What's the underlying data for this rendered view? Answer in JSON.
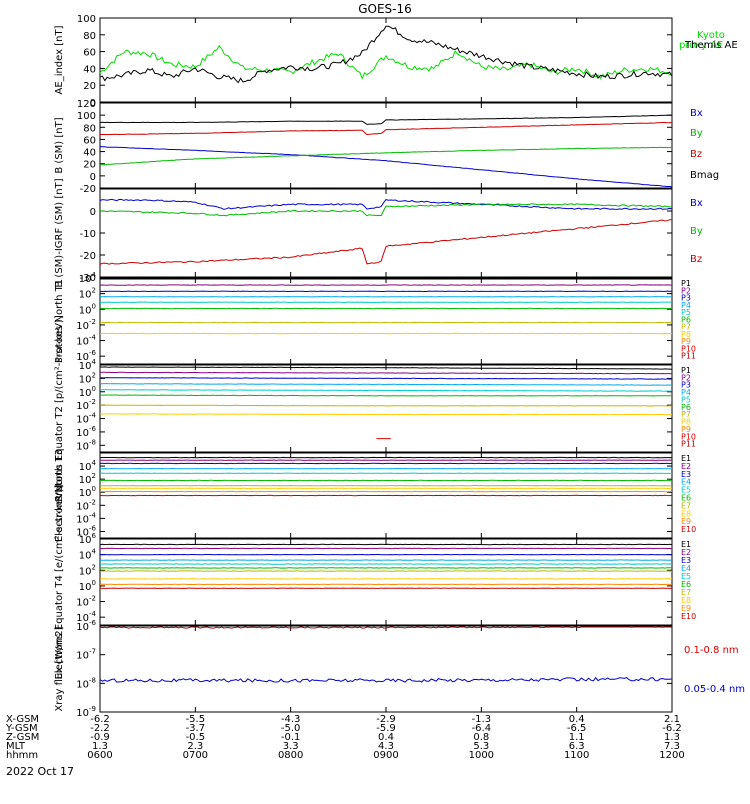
{
  "title": "GOES-16",
  "date": "2022 Oct 17",
  "chart_data": [
    {
      "id": "ae",
      "type": "line",
      "ylabel": "AE_index [nT]",
      "ylim": [
        0,
        100
      ],
      "yticks": [
        0,
        20,
        40,
        60,
        80,
        100
      ],
      "legend": [
        {
          "name": "Kyoto proxy AE",
          "color": "#00dd00"
        },
        {
          "name": "Themis AE",
          "color": "#000000"
        }
      ],
      "series": [
        {
          "name": "Kyoto proxy AE",
          "color": "#00dd00",
          "x": [
            6.0,
            6.25,
            6.5,
            6.75,
            7.0,
            7.25,
            7.5,
            7.75,
            8.0,
            8.25,
            8.5,
            8.75,
            9.0,
            9.25,
            9.5,
            9.75,
            10.0,
            10.25,
            10.5,
            10.75,
            11.0,
            11.25,
            11.5,
            11.75,
            12.0
          ],
          "values": [
            35,
            60,
            58,
            45,
            42,
            65,
            40,
            38,
            36,
            48,
            58,
            30,
            55,
            42,
            40,
            60,
            42,
            38,
            45,
            35,
            40,
            30,
            38,
            40,
            35
          ]
        },
        {
          "name": "Themis AE",
          "color": "#000000",
          "x": [
            6.0,
            6.25,
            6.5,
            6.75,
            7.0,
            7.25,
            7.5,
            7.75,
            8.0,
            8.25,
            8.5,
            8.75,
            9.0,
            9.25,
            9.5,
            9.75,
            10.0,
            10.25,
            10.5,
            10.75,
            11.0,
            11.25,
            11.5,
            11.75,
            12.0
          ],
          "values": [
            28,
            32,
            38,
            30,
            40,
            30,
            25,
            38,
            42,
            40,
            45,
            58,
            92,
            75,
            70,
            62,
            55,
            48,
            42,
            38,
            34,
            30,
            32,
            35,
            32
          ]
        }
      ]
    },
    {
      "id": "bsm",
      "type": "line",
      "ylabel": "B (SM) [nT]",
      "ylim": [
        -20,
        120
      ],
      "yticks": [
        -20,
        0,
        20,
        40,
        60,
        80,
        100,
        120
      ],
      "legend": [
        {
          "name": "Bx",
          "color": "#0000cc"
        },
        {
          "name": "By",
          "color": "#00bb00"
        },
        {
          "name": "Bz",
          "color": "#cc0000"
        },
        {
          "name": "Bmag",
          "color": "#000000"
        }
      ],
      "series": [
        {
          "name": "Bx",
          "color": "#0000cc",
          "x": [
            6.0,
            7.0,
            8.0,
            9.0,
            10.0,
            11.0,
            12.0
          ],
          "values": [
            48,
            42,
            35,
            25,
            10,
            -5,
            -18
          ]
        },
        {
          "name": "By",
          "color": "#00bb00",
          "x": [
            6.0,
            7.0,
            8.0,
            9.0,
            10.0,
            11.0,
            12.0
          ],
          "values": [
            18,
            28,
            33,
            38,
            42,
            45,
            47
          ]
        },
        {
          "name": "Bz",
          "color": "#cc0000",
          "x": [
            6.0,
            7.0,
            8.0,
            8.75,
            8.8,
            8.95,
            9.0,
            10.0,
            11.0,
            12.0
          ],
          "values": [
            68,
            70,
            74,
            75,
            68,
            70,
            76,
            80,
            84,
            88
          ]
        },
        {
          "name": "Bmag",
          "color": "#000000",
          "x": [
            6.0,
            7.0,
            8.0,
            8.75,
            8.8,
            8.95,
            9.0,
            10.0,
            11.0,
            12.0
          ],
          "values": [
            88,
            88,
            90,
            90,
            85,
            86,
            92,
            94,
            96,
            100
          ]
        }
      ]
    },
    {
      "id": "bigrf",
      "type": "line",
      "ylabel": "B (SM)-IGRF (SM) [nT]",
      "ylim": [
        -30,
        10
      ],
      "yticks": [
        -30,
        -20,
        -10,
        0
      ],
      "legend": [
        {
          "name": "Bx",
          "color": "#0000cc"
        },
        {
          "name": "By",
          "color": "#00bb00"
        },
        {
          "name": "Bz",
          "color": "#cc0000"
        }
      ],
      "series": [
        {
          "name": "Bx",
          "color": "#0000cc",
          "x": [
            6.0,
            6.5,
            7.0,
            7.3,
            8.0,
            8.75,
            8.8,
            8.95,
            9.0,
            10.0,
            10.5,
            11.0,
            12.0
          ],
          "values": [
            5,
            5,
            4,
            1,
            3,
            3,
            1,
            2,
            5,
            3,
            2,
            1,
            1
          ]
        },
        {
          "name": "By",
          "color": "#00bb00",
          "x": [
            6.0,
            7.0,
            7.3,
            8.0,
            8.75,
            8.8,
            8.95,
            9.0,
            10.0,
            11.0,
            12.0
          ],
          "values": [
            0,
            -1,
            -2,
            0,
            0,
            -2,
            -2,
            2,
            3,
            3,
            2
          ]
        },
        {
          "name": "Bz",
          "color": "#cc0000",
          "x": [
            6.0,
            7.0,
            8.0,
            8.75,
            8.8,
            8.95,
            9.0,
            10.0,
            11.0,
            12.0
          ],
          "values": [
            -24,
            -23,
            -21,
            -17,
            -24,
            -23,
            -16,
            -12,
            -8,
            -4
          ]
        }
      ]
    },
    {
      "id": "protons-north",
      "type": "line",
      "scale": "log",
      "ylabel": "Protons North T1",
      "ylim_exp": [
        -7,
        4
      ],
      "ytick_exps": [
        -6,
        -4,
        -2,
        0,
        2,
        4
      ],
      "legend": [
        {
          "name": "P1",
          "color": "#000000"
        },
        {
          "name": "P2",
          "color": "#880088"
        },
        {
          "name": "P3",
          "color": "#0000cc"
        },
        {
          "name": "P4",
          "color": "#00aaee"
        },
        {
          "name": "P5",
          "color": "#00cccc"
        },
        {
          "name": "P6",
          "color": "#00bb00"
        },
        {
          "name": "P7",
          "color": "#bbbb00"
        },
        {
          "name": "P8",
          "color": "#ffcc00"
        },
        {
          "name": "P9",
          "color": "#ff8800"
        },
        {
          "name": "P10",
          "color": "#dd0000"
        },
        {
          "name": "P11",
          "color": "#aa0000"
        }
      ],
      "series": [
        {
          "name": "P1",
          "color": "#000000",
          "levels": [
            3.9,
            3.9,
            3.9
          ]
        },
        {
          "name": "P2",
          "color": "#880088",
          "levels": [
            3.1,
            3.1,
            3.1
          ]
        },
        {
          "name": "P3",
          "color": "#0000cc",
          "levels": [
            2.3,
            2.3,
            2.3
          ]
        },
        {
          "name": "P4",
          "color": "#00aaee",
          "levels": [
            1.6,
            1.6,
            1.6
          ]
        },
        {
          "name": "P5",
          "color": "#00cccc",
          "levels": [
            0.9,
            0.9,
            0.9
          ]
        },
        {
          "name": "P6",
          "color": "#00bb00",
          "levels": [
            0.1,
            0.1,
            0.1
          ]
        },
        {
          "name": "P7",
          "color": "#bbbb00",
          "levels": [
            -1.7,
            -1.7,
            -1.7
          ]
        },
        {
          "name": "P8",
          "color": "#ffcc00",
          "levels": [
            -3.1,
            -3.1,
            -3.1
          ]
        }
      ]
    },
    {
      "id": "protons-equator",
      "type": "line",
      "scale": "log",
      "ylabel": "Protons Equator T2 [p/(cm²-s-sr-keV)]",
      "ylim_exp": [
        -9,
        4
      ],
      "ytick_exps": [
        -8,
        -6,
        -4,
        -2,
        0,
        2,
        4
      ],
      "legend": [
        {
          "name": "P1",
          "color": "#000000"
        },
        {
          "name": "P2",
          "color": "#880088"
        },
        {
          "name": "P3",
          "color": "#0000cc"
        },
        {
          "name": "P4",
          "color": "#00aaee"
        },
        {
          "name": "P5",
          "color": "#00cccc"
        },
        {
          "name": "P6",
          "color": "#00bb00"
        },
        {
          "name": "P7",
          "color": "#bbbb00"
        },
        {
          "name": "P8",
          "color": "#ffcc00"
        },
        {
          "name": "P9",
          "color": "#ff8800"
        },
        {
          "name": "P10",
          "color": "#dd0000"
        },
        {
          "name": "P11",
          "color": "#aa0000"
        }
      ],
      "series": [
        {
          "name": "P1",
          "color": "#000000",
          "levels": [
            3.7,
            3.6,
            3.4
          ]
        },
        {
          "name": "P2",
          "color": "#880088",
          "levels": [
            2.9,
            2.8,
            2.7
          ]
        },
        {
          "name": "P3",
          "color": "#0000cc",
          "levels": [
            2.1,
            2.0,
            1.9
          ]
        },
        {
          "name": "P4",
          "color": "#00aaee",
          "levels": [
            1.2,
            1.1,
            1.0
          ]
        },
        {
          "name": "P5",
          "color": "#00cccc",
          "levels": [
            0.3,
            0.2,
            0.1
          ]
        },
        {
          "name": "P6",
          "color": "#00bb00",
          "levels": [
            -0.5,
            -0.6,
            -0.6
          ]
        },
        {
          "name": "P7",
          "color": "#bbbb00",
          "levels": [
            -2.0,
            -2.1,
            -2.1
          ]
        },
        {
          "name": "P8",
          "color": "#ffcc00",
          "levels": [
            -3.3,
            -3.4,
            -3.4
          ]
        },
        {
          "name": "P10",
          "color": "#dd0000",
          "segment": [
            8.9,
            9.05,
            -7.0
          ]
        }
      ]
    },
    {
      "id": "electrons-north",
      "type": "line",
      "scale": "log",
      "ylabel": "Electrons North T3",
      "ylim_exp": [
        -7,
        6
      ],
      "ytick_exps": [
        -6,
        -4,
        -2,
        0,
        2,
        4
      ],
      "legend": [
        {
          "name": "E1",
          "color": "#000000"
        },
        {
          "name": "E2",
          "color": "#880088"
        },
        {
          "name": "E3",
          "color": "#0000cc"
        },
        {
          "name": "E4",
          "color": "#00aaee"
        },
        {
          "name": "E5",
          "color": "#00cccc"
        },
        {
          "name": "E6",
          "color": "#00bb00"
        },
        {
          "name": "E7",
          "color": "#bbbb00"
        },
        {
          "name": "E8",
          "color": "#ffcc00"
        },
        {
          "name": "E9",
          "color": "#ff8800"
        },
        {
          "name": "E10",
          "color": "#cc0000"
        }
      ],
      "series": [
        {
          "name": "E1",
          "color": "#000000",
          "levels": [
            5.3,
            5.3,
            5.3
          ]
        },
        {
          "name": "E2",
          "color": "#880088",
          "levels": [
            4.9,
            4.9,
            4.9
          ]
        },
        {
          "name": "E3",
          "color": "#0000cc",
          "levels": [
            4.4,
            4.4,
            4.4
          ]
        },
        {
          "name": "E4",
          "color": "#00aaee",
          "levels": [
            3.6,
            3.6,
            3.6
          ]
        },
        {
          "name": "E5",
          "color": "#00cccc",
          "levels": [
            2.9,
            2.9,
            2.9
          ]
        },
        {
          "name": "E6",
          "color": "#00bb00",
          "levels": [
            1.8,
            1.8,
            1.8
          ]
        },
        {
          "name": "E7",
          "color": "#bbbb00",
          "levels": [
            1.0,
            1.0,
            1.0
          ]
        },
        {
          "name": "E8",
          "color": "#ffcc00",
          "levels": [
            0.6,
            0.6,
            0.6
          ]
        },
        {
          "name": "E9",
          "color": "#ff8800",
          "levels": [
            0.1,
            0.1,
            0.1
          ]
        },
        {
          "name": "E10",
          "color": "#cc0000",
          "levels": [
            -0.5,
            -0.5,
            -0.5
          ]
        }
      ]
    },
    {
      "id": "electrons-equator",
      "type": "line",
      "scale": "log",
      "ylabel": "Electrons Equator T4 [e/(cm²-s-sr-keV)]",
      "ylim_exp": [
        -5,
        6
      ],
      "ytick_exps": [
        -4,
        -2,
        0,
        2,
        4,
        6
      ],
      "legend": [
        {
          "name": "E1",
          "color": "#000000"
        },
        {
          "name": "E2",
          "color": "#880088"
        },
        {
          "name": "E3",
          "color": "#0000cc"
        },
        {
          "name": "E4",
          "color": "#00aaee"
        },
        {
          "name": "E5",
          "color": "#00cccc"
        },
        {
          "name": "E6",
          "color": "#00bb00"
        },
        {
          "name": "E7",
          "color": "#bbbb00"
        },
        {
          "name": "E8",
          "color": "#ffcc00"
        },
        {
          "name": "E9",
          "color": "#ff8800"
        },
        {
          "name": "E10",
          "color": "#cc0000"
        }
      ],
      "series": [
        {
          "name": "E1",
          "color": "#000000",
          "levels": [
            5.3,
            5.3,
            5.3
          ]
        },
        {
          "name": "E2",
          "color": "#880088",
          "levels": [
            4.8,
            4.8,
            4.8
          ]
        },
        {
          "name": "E3",
          "color": "#0000cc",
          "levels": [
            4.0,
            4.0,
            4.0
          ]
        },
        {
          "name": "E4",
          "color": "#00aaee",
          "levels": [
            3.3,
            3.3,
            3.3
          ]
        },
        {
          "name": "E5",
          "color": "#00cccc",
          "levels": [
            2.8,
            2.8,
            2.8
          ]
        },
        {
          "name": "E6",
          "color": "#00bb00",
          "levels": [
            2.3,
            2.3,
            2.3
          ]
        },
        {
          "name": "E7",
          "color": "#bbbb00",
          "levels": [
            1.9,
            1.9,
            1.9
          ]
        },
        {
          "name": "E8",
          "color": "#ffcc00",
          "levels": [
            0.9,
            0.9,
            0.9
          ]
        },
        {
          "name": "E9",
          "color": "#ff8800",
          "levels": [
            0.2,
            0.2,
            0.2
          ]
        },
        {
          "name": "E10",
          "color": "#cc0000",
          "levels": [
            -0.3,
            -0.3,
            -0.3
          ]
        }
      ]
    },
    {
      "id": "xray",
      "type": "line",
      "scale": "log",
      "ylabel": "Xray flux [W/m2]",
      "ylim_exp": [
        -9,
        -6
      ],
      "ytick_exps": [
        -9,
        -8,
        -7,
        -6
      ],
      "legend": [
        {
          "name": "0.1-0.8 nm",
          "color": "#dd0000"
        },
        {
          "name": "0.05-0.4 nm",
          "color": "#0000cc"
        }
      ],
      "series": [
        {
          "name": "0.1-0.8 nm",
          "color": "#aa0000",
          "levels": [
            -6.05,
            -6.05,
            -6.02
          ]
        },
        {
          "name": "0.05-0.4 nm",
          "color": "#0000cc",
          "levels": [
            -7.9,
            -7.9,
            -7.85
          ]
        }
      ]
    }
  ],
  "x_axis": {
    "ticks": [
      {
        "xgsm": "-6.2",
        "ygsm": "-2.2",
        "zgsm": "-0.9",
        "mlt": "1.3",
        "hhmm": "0600"
      },
      {
        "xgsm": "-5.5",
        "ygsm": "-3.7",
        "zgsm": "-0.5",
        "mlt": "2.3",
        "hhmm": "0700"
      },
      {
        "xgsm": "-4.3",
        "ygsm": "-5.0",
        "zgsm": "-0.1",
        "mlt": "3.3",
        "hhmm": "0800"
      },
      {
        "xgsm": "-2.9",
        "ygsm": "-5.9",
        "zgsm": "0.4",
        "mlt": "4.3",
        "hhmm": "0900"
      },
      {
        "xgsm": "-1.3",
        "ygsm": "-6.4",
        "zgsm": "0.8",
        "mlt": "5.3",
        "hhmm": "1000"
      },
      {
        "xgsm": "0.4",
        "ygsm": "-6.5",
        "zgsm": "1.1",
        "mlt": "6.3",
        "hhmm": "1100"
      },
      {
        "xgsm": "2.1",
        "ygsm": "-6.2",
        "zgsm": "1.3",
        "mlt": "7.3",
        "hhmm": "1200"
      }
    ],
    "row_labels": [
      "X-GSM",
      "Y-GSM",
      "Z-GSM",
      "MLT",
      "hhmm"
    ]
  }
}
